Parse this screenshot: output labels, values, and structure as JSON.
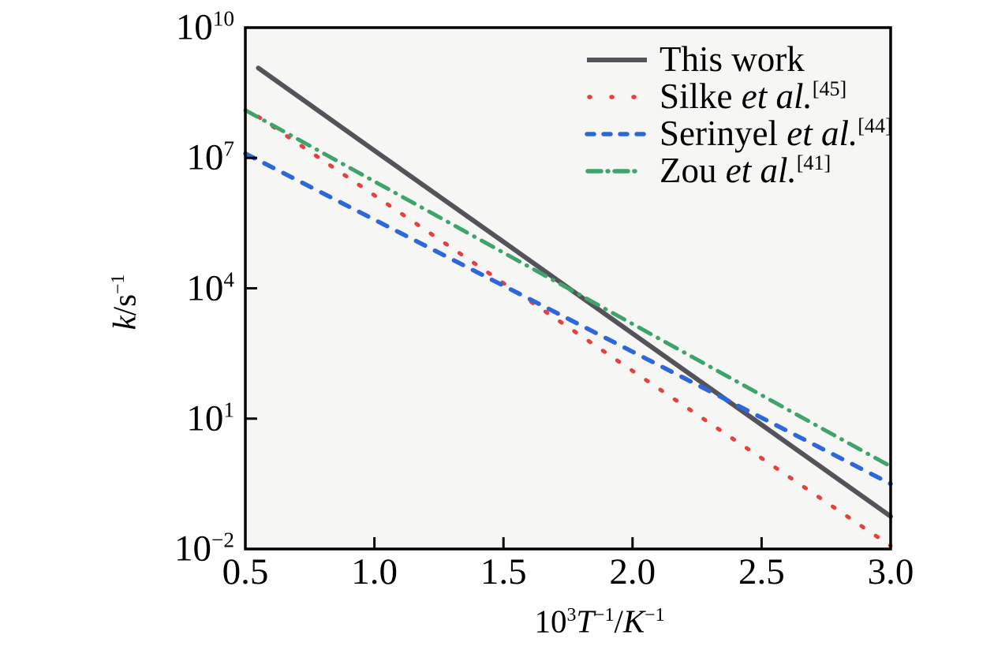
{
  "figure": {
    "background": "#ffffff",
    "plot_background": "#f6f6f4",
    "frame_color": "#000000"
  },
  "chart_data": {
    "type": "line",
    "x_axis": "10^3 T^-1 / K^-1",
    "y_axis": "k / s^-1 (log scale)",
    "x_range": [
      0.5,
      3.0
    ],
    "y_log_range": [
      -2,
      10
    ],
    "x_ticks": [
      0.5,
      1.0,
      1.5,
      2.0,
      2.5,
      3.0
    ],
    "x_tick_labels": [
      "0.5",
      "1.0",
      "1.5",
      "2.0",
      "2.5",
      "3.0"
    ],
    "y_ticks": [
      10,
      7,
      4,
      1,
      -2
    ],
    "y_tick_base": "10",
    "y_tick_exponents": [
      "10",
      "7",
      "4",
      "1",
      "−2"
    ],
    "y_scale": "log10",
    "grid": false,
    "legend_position": "top-right-inside",
    "series": [
      {
        "id": "this-work",
        "name": "This work",
        "color": "#55535a",
        "style": "solid",
        "line_width": 6,
        "x": [
          0.55,
          1.0,
          1.5,
          2.0,
          2.5,
          3.0
        ],
        "log10_k": [
          9.07,
          7.17,
          5.07,
          2.96,
          0.86,
          -1.25
        ]
      },
      {
        "id": "silke",
        "name": "Silke et al.[45]",
        "color": "#e5403e",
        "style": "dotted",
        "line_width": 5,
        "x": [
          0.55,
          1.0,
          1.5,
          2.0,
          2.5,
          3.0
        ],
        "log10_k": [
          7.95,
          6.14,
          4.12,
          2.1,
          0.09,
          -1.93
        ]
      },
      {
        "id": "serinyel",
        "name": "Serinyel et al.[44]",
        "color": "#2c68d9",
        "style": "dashed",
        "line_width": 5.5,
        "x": [
          0.5,
          1.0,
          1.5,
          2.0,
          2.5,
          3.0
        ],
        "log10_k": [
          7.1,
          5.58,
          4.06,
          2.54,
          1.02,
          -0.5
        ]
      },
      {
        "id": "zou",
        "name": "Zou et al.[41]",
        "color": "#3ea46b",
        "style": "dashdot",
        "line_width": 5,
        "x": [
          0.5,
          1.0,
          1.5,
          2.0,
          2.5,
          3.0
        ],
        "log10_k": [
          8.1,
          6.46,
          4.82,
          3.18,
          1.54,
          -0.1
        ]
      }
    ]
  },
  "axes": {
    "ylabel_text": "k/s−1",
    "xlabel_text": "103T−1/K−1",
    "ylabel_parts": [
      {
        "t": "k",
        "i": true
      },
      {
        "t": "/s"
      },
      {
        "t": "−1",
        "sup": true
      }
    ],
    "xlabel_parts": [
      {
        "t": "10"
      },
      {
        "t": "3",
        "sup": true
      },
      {
        "t": "T",
        "i": true
      },
      {
        "t": "−1",
        "sup": true
      },
      {
        "t": "/"
      },
      {
        "t": "K",
        "i": true
      },
      {
        "t": "−1",
        "sup": true
      }
    ]
  },
  "legend": {
    "items": [
      {
        "label": "This work",
        "parts": [
          {
            "t": "This work"
          }
        ]
      },
      {
        "label": "Silke et al.[45]",
        "parts": [
          {
            "t": "Silke "
          },
          {
            "t": "et al.",
            "i": true
          },
          {
            "t": "[45]",
            "sup": true
          }
        ]
      },
      {
        "label": "Serinyel et al.[44]",
        "parts": [
          {
            "t": "Serinyel "
          },
          {
            "t": "et al.",
            "i": true
          },
          {
            "t": "[44]",
            "sup": true
          }
        ]
      },
      {
        "label": "Zou et al.[41]",
        "parts": [
          {
            "t": "Zou "
          },
          {
            "t": "et al.",
            "i": true
          },
          {
            "t": "[41]",
            "sup": true
          }
        ]
      }
    ]
  }
}
